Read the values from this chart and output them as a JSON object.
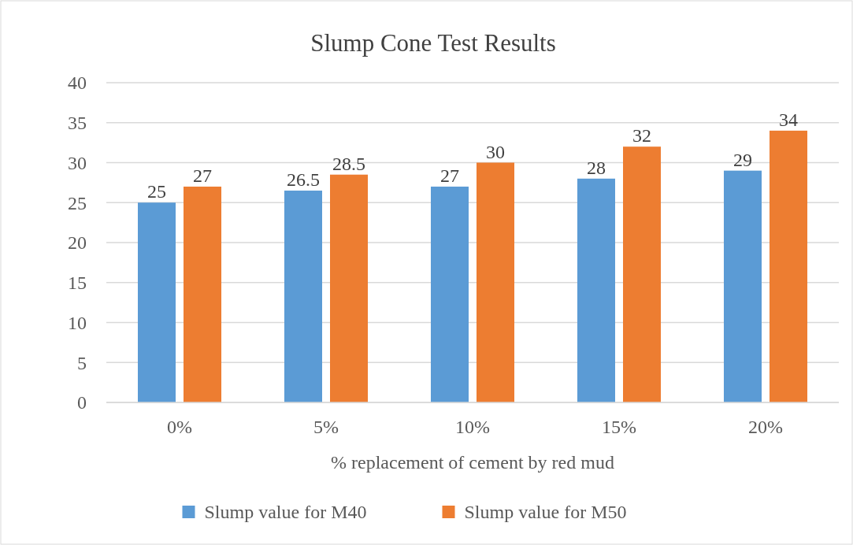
{
  "chart_data": {
    "type": "bar",
    "title": "Slump Cone Test Results",
    "xlabel": "% replacement of cement by red mud",
    "categories": [
      "0%",
      "5%",
      "10%",
      "15%",
      "20%"
    ],
    "series": [
      {
        "name": "Slump value for M40",
        "color": "#5b9bd5",
        "values": [
          25,
          26.5,
          27,
          28,
          29
        ]
      },
      {
        "name": "Slump value for M50",
        "color": "#ed7d31",
        "values": [
          27,
          28.5,
          30,
          32,
          34
        ]
      }
    ],
    "ylim": [
      0,
      40
    ],
    "yticks": [
      0,
      5,
      10,
      15,
      20,
      25,
      30,
      35,
      40
    ],
    "grid": "y",
    "legend": "bottom",
    "data_labels": true
  }
}
